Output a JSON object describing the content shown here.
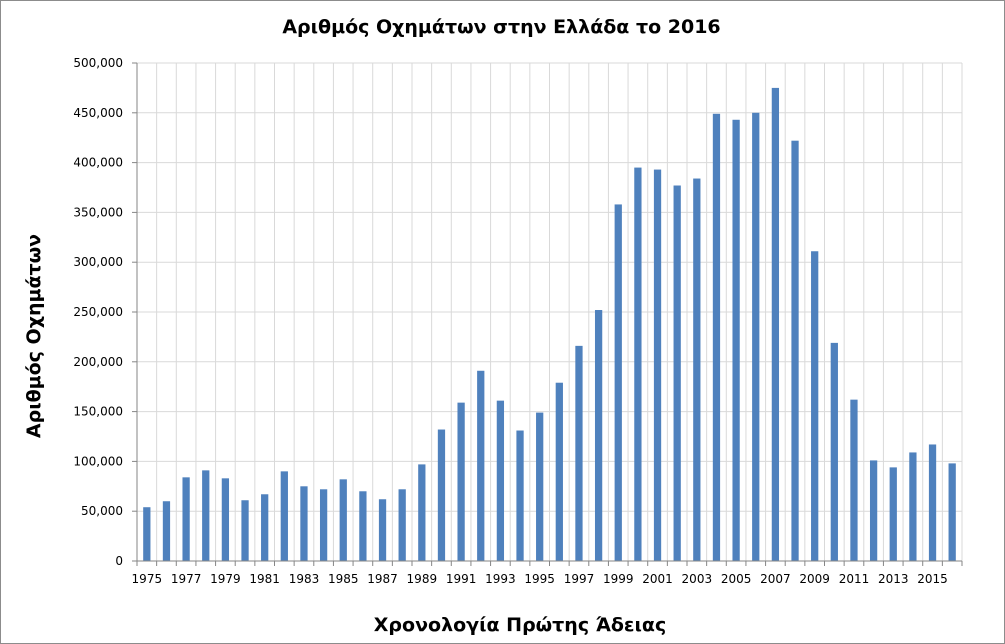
{
  "chart_data": {
    "type": "bar",
    "title": "Αριθμός Οχημάτων στην Ελλάδα το 2016",
    "xlabel": "Χρονολογία Πρώτης Άδειας",
    "ylabel": "Αριθμός Οχημάτων",
    "ylim": [
      0,
      500000
    ],
    "y_ticks": [
      "0",
      "50,000",
      "100,000",
      "150,000",
      "200,000",
      "250,000",
      "300,000",
      "350,000",
      "400,000",
      "450,000",
      "500,000"
    ],
    "x_tick_labels": [
      "1975",
      "1977",
      "1979",
      "1981",
      "1983",
      "1985",
      "1987",
      "1989",
      "1991",
      "1993",
      "1995",
      "1997",
      "1999",
      "2001",
      "2003",
      "2005",
      "2007",
      "2009",
      "2011",
      "2013",
      "2015"
    ],
    "grid": true,
    "legend": "none",
    "bar_color": "#4f81bd",
    "categories": [
      "1975",
      "1976",
      "1977",
      "1978",
      "1979",
      "1980",
      "1981",
      "1982",
      "1983",
      "1984",
      "1985",
      "1986",
      "1987",
      "1988",
      "1989",
      "1990",
      "1991",
      "1992",
      "1993",
      "1994",
      "1995",
      "1996",
      "1997",
      "1998",
      "1999",
      "2000",
      "2001",
      "2002",
      "2003",
      "2004",
      "2005",
      "2006",
      "2007",
      "2008",
      "2009",
      "2010",
      "2011",
      "2012",
      "2013",
      "2014",
      "2015",
      "2016"
    ],
    "values": [
      54000,
      60000,
      84000,
      91000,
      83000,
      61000,
      67000,
      90000,
      75000,
      72000,
      82000,
      70000,
      62000,
      72000,
      97000,
      132000,
      159000,
      191000,
      161000,
      131000,
      149000,
      179000,
      216000,
      252000,
      358000,
      395000,
      393000,
      377000,
      384000,
      449000,
      443000,
      450000,
      475000,
      422000,
      311000,
      219000,
      162000,
      101000,
      94000,
      109000,
      117000,
      98000
    ]
  }
}
